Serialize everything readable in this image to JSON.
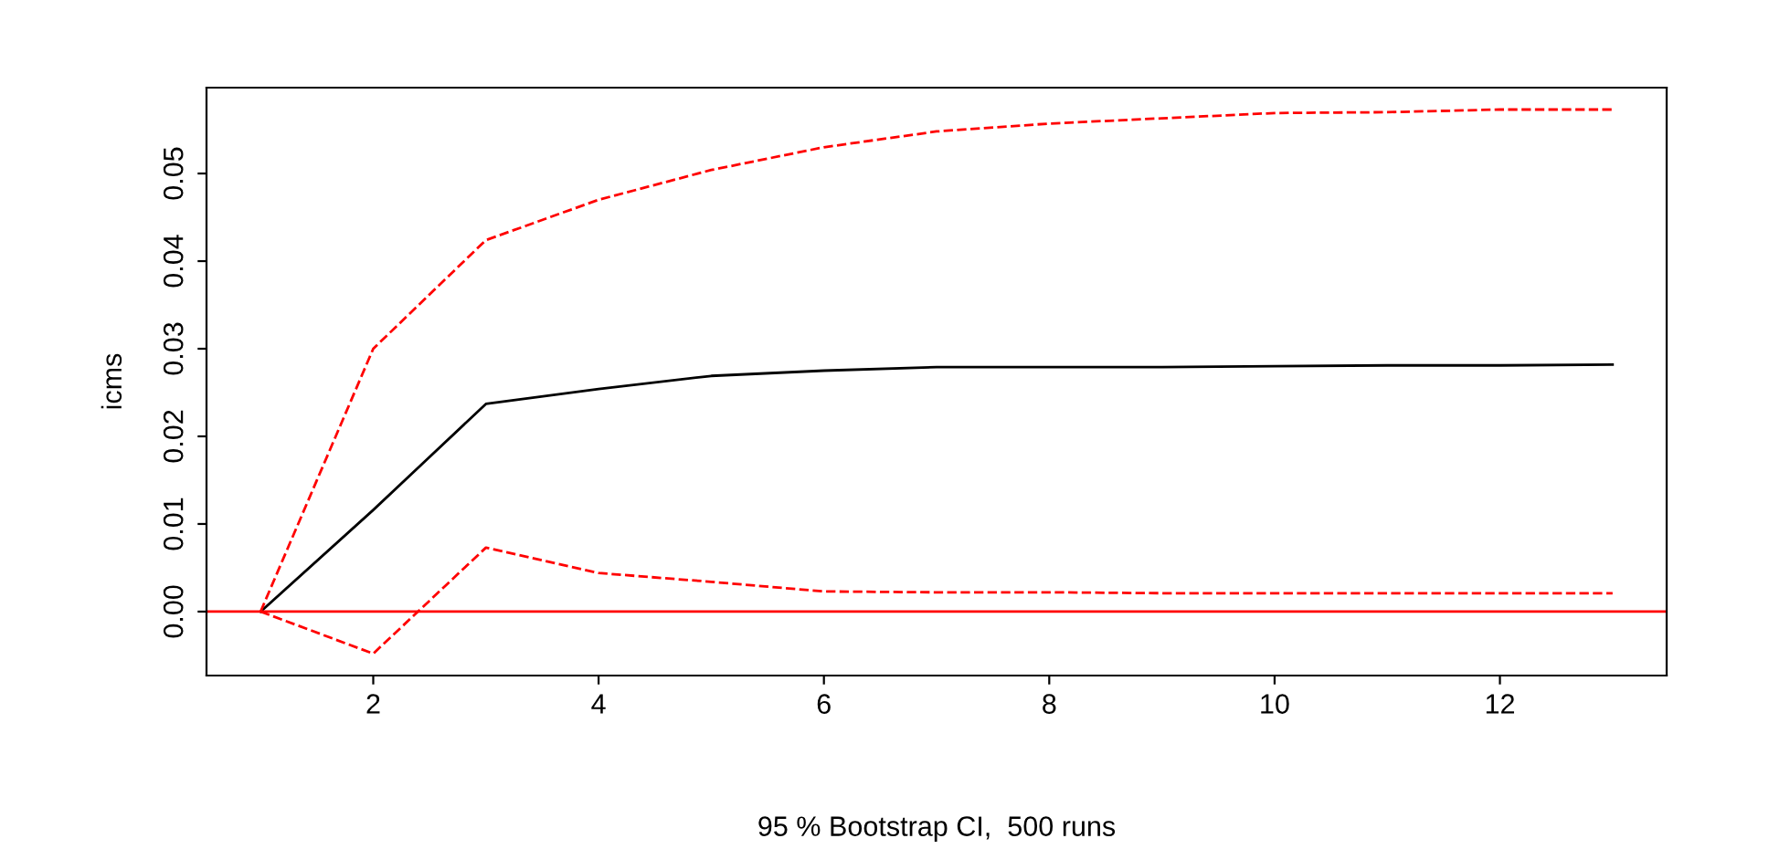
{
  "chart_data": {
    "type": "line",
    "xlabel": "95 % Bootstrap CI,  500 runs",
    "ylabel": "icms",
    "x": [
      1,
      2,
      3,
      4,
      5,
      6,
      7,
      8,
      9,
      10,
      11,
      12,
      13
    ],
    "series": [
      {
        "color": "#000000",
        "line_style": "solid",
        "values": [
          0,
          0.0116,
          0.0237,
          0.0254,
          0.0269,
          0.0275,
          0.0279,
          0.0279,
          0.0279,
          0.028,
          0.0281,
          0.0281,
          0.0282
        ]
      },
      {
        "color": "#ff0000",
        "line_style": "dashed",
        "values": [
          0,
          0.03,
          0.0424,
          0.047,
          0.0504,
          0.053,
          0.0548,
          0.0557,
          0.0563,
          0.0569,
          0.057,
          0.0573,
          0.0573
        ]
      },
      {
        "color": "#ff0000",
        "line_style": "dashed",
        "values": [
          0,
          -0.0048,
          0.0073,
          0.0044,
          0.0034,
          0.0023,
          0.0022,
          0.0022,
          0.0021,
          0.0021,
          0.0021,
          0.0021,
          0.0021
        ]
      }
    ],
    "ref_lines": [
      {
        "axis": "y",
        "value": 0,
        "color": "#ff0000",
        "line_style": "solid"
      }
    ],
    "xlim": [
      0.52,
      13.48
    ],
    "ylim": [
      -0.0073,
      0.0598
    ],
    "xticks": [
      2,
      4,
      6,
      8,
      10,
      12
    ],
    "yticks": [
      {
        "value": 0,
        "label": "0.00"
      },
      {
        "value": 0.01,
        "label": "0.01"
      },
      {
        "value": 0.02,
        "label": "0.02"
      },
      {
        "value": 0.03,
        "label": "0.03"
      },
      {
        "value": 0.04,
        "label": "0.04"
      },
      {
        "value": 0.05,
        "label": "0.05"
      }
    ],
    "grid": false,
    "legend": false
  }
}
